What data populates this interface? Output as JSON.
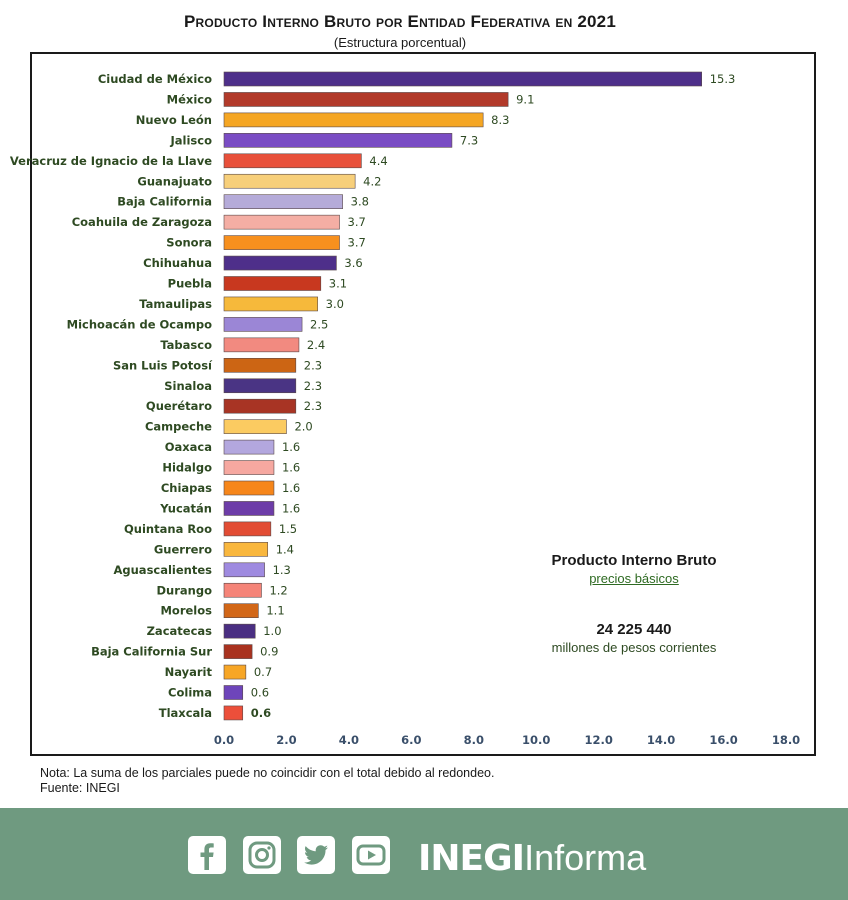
{
  "title": "Producto Interno Bruto por Entidad Federativa en 2021",
  "subtitle": "(Estructura porcentual)",
  "chart_data": {
    "type": "bar",
    "orientation": "horizontal",
    "title": "Producto Interno Bruto por Entidad Federativa en 2021",
    "subtitle": "(Estructura porcentual)",
    "xlim": [
      0,
      18
    ],
    "xticks": [
      "0.0",
      "2.0",
      "4.0",
      "6.0",
      "8.0",
      "10.0",
      "12.0",
      "14.0",
      "16.0",
      "18.0"
    ],
    "grid": false,
    "categories": [
      "Ciudad de México",
      "México",
      "Nuevo León",
      "Jalisco",
      "Veracruz de Ignacio de la Llave",
      "Guanajuato",
      "Baja California",
      "Coahuila de Zaragoza",
      "Sonora",
      "Chihuahua",
      "Puebla",
      "Tamaulipas",
      "Michoacán de Ocampo",
      "Tabasco",
      "San Luis Potosí",
      "Sinaloa",
      "Querétaro",
      "Campeche",
      "Oaxaca",
      "Hidalgo",
      "Chiapas",
      "Yucatán",
      "Quintana Roo",
      "Guerrero",
      "Aguascalientes",
      "Durango",
      "Morelos",
      "Zacatecas",
      "Baja California Sur",
      "Nayarit",
      "Colima",
      "Tlaxcala"
    ],
    "values": [
      15.3,
      9.1,
      8.3,
      7.3,
      4.4,
      4.2,
      3.8,
      3.7,
      3.7,
      3.6,
      3.1,
      3.0,
      2.5,
      2.4,
      2.3,
      2.3,
      2.3,
      2.0,
      1.6,
      1.6,
      1.6,
      1.6,
      1.5,
      1.4,
      1.3,
      1.2,
      1.1,
      1.0,
      0.9,
      0.7,
      0.6,
      0.6
    ],
    "value_labels": [
      "15.3",
      "9.1",
      "8.3",
      "7.3",
      "4.4",
      "4.2",
      "3.8",
      "3.7",
      "3.7",
      "3.6",
      "3.1",
      "3.0",
      "2.5",
      "2.4",
      "2.3",
      "2.3",
      "2.3",
      "2.0",
      "1.6",
      "1.6",
      "1.6",
      "1.6",
      "1.5",
      "1.4",
      "1.3",
      "1.2",
      "1.1",
      "1.0",
      "0.9",
      "0.7",
      "0.6",
      "0.6"
    ],
    "colors": [
      "#4e2f8a",
      "#b23a2a",
      "#f5a623",
      "#7a4cc4",
      "#e8503a",
      "#f7cf7a",
      "#b5abd9",
      "#f4aea4",
      "#f7901e",
      "#4e2f8a",
      "#c8381f",
      "#f6b93b",
      "#9b86d6",
      "#f28a80",
      "#cc6514",
      "#4a3484",
      "#a83424",
      "#fbcb61",
      "#b3a7de",
      "#f6a8a0",
      "#f6861a",
      "#6d3ca8",
      "#e24c34",
      "#f9b73e",
      "#9f8ae0",
      "#f58478",
      "#d26718",
      "#4a2e82",
      "#a9321f",
      "#f7a626",
      "#6e45ba",
      "#ec4f3a"
    ]
  },
  "info": {
    "title": "Producto Interno Bruto",
    "subtitle": "precios básicos",
    "total": "24 225 440",
    "units": "millones de pesos corrientes"
  },
  "note": "Nota: La suma de los parciales puede no coincidir con el total debido al redondeo.",
  "source": "Fuente: INEGI",
  "footer": {
    "brand_bold": "INEGI",
    "brand_light": "Informa",
    "social_icons": [
      "facebook-icon",
      "instagram-icon",
      "twitter-icon",
      "youtube-icon"
    ],
    "background": "#6f9a80"
  }
}
